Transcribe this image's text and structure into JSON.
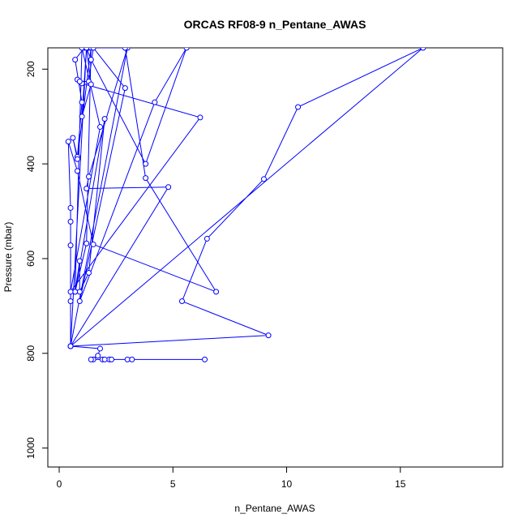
{
  "chart_data": {
    "type": "line",
    "title": "ORCAS RF08-9 n_Pentane_AWAS",
    "xlabel": "n_Pentane_AWAS",
    "ylabel": "Pressure (mbar)",
    "xlim": [
      -0.5,
      19.5
    ],
    "ylim": [
      1040,
      155
    ],
    "y_inverted": true,
    "x_ticks": [
      0,
      5,
      10,
      15
    ],
    "y_ticks": [
      200,
      400,
      600,
      800,
      1000
    ],
    "grid": false,
    "legend": "none",
    "series": [
      {
        "color": "#0000ff",
        "marker": "open-circle",
        "points": [
          [
            6.4,
            813
          ],
          [
            2.2,
            813
          ],
          [
            1.9,
            813
          ],
          [
            3.0,
            813
          ],
          [
            3.2,
            813
          ],
          [
            2.0,
            813
          ],
          [
            2.3,
            813
          ],
          [
            1.5,
            813
          ],
          [
            1.4,
            813
          ],
          [
            1.7,
            805
          ],
          [
            1.8,
            790
          ],
          [
            0.5,
            785
          ],
          [
            9.2,
            762
          ],
          [
            5.4,
            690
          ],
          [
            6.5,
            558
          ],
          [
            9.0,
            432
          ],
          [
            10.5,
            280
          ],
          [
            16.0,
            155
          ],
          [
            0.5,
            785
          ],
          [
            4.8,
            449
          ],
          [
            1.2,
            452
          ],
          [
            1.3,
            427
          ],
          [
            3.0,
            155
          ],
          [
            0.5,
            785
          ],
          [
            1.2,
            155
          ],
          [
            0.5,
            785
          ],
          [
            0.5,
            690
          ],
          [
            0.5,
            572
          ],
          [
            0.5,
            522
          ],
          [
            0.5,
            493
          ],
          [
            0.4,
            353
          ],
          [
            0.8,
            415
          ],
          [
            1.5,
            570
          ],
          [
            6.9,
            670
          ],
          [
            3.8,
            430
          ],
          [
            2.9,
            155
          ],
          [
            1.3,
            155
          ],
          [
            1.1,
            155
          ],
          [
            0.7,
            180
          ],
          [
            1.0,
            270
          ],
          [
            0.8,
            385
          ],
          [
            0.6,
            345
          ],
          [
            0.8,
            390
          ],
          [
            1.4,
            155
          ],
          [
            1.2,
            568
          ],
          [
            0.7,
            670
          ],
          [
            0.9,
            605
          ],
          [
            0.9,
            670
          ],
          [
            1.3,
            630
          ],
          [
            2.0,
            305
          ],
          [
            0.7,
            670
          ],
          [
            1.0,
            155
          ],
          [
            1.8,
            322
          ],
          [
            0.5,
            670
          ],
          [
            6.2,
            302
          ],
          [
            1.0,
            230
          ],
          [
            0.8,
            222
          ],
          [
            0.9,
            226
          ],
          [
            1.3,
            226
          ],
          [
            1.5,
            155
          ],
          [
            2.9,
            240
          ],
          [
            0.9,
            690
          ],
          [
            4.2,
            270
          ],
          [
            5.6,
            155
          ],
          [
            3.8,
            400
          ],
          [
            1.4,
            180
          ],
          [
            1.2,
            155
          ],
          [
            1.4,
            232
          ],
          [
            1.0,
            300
          ],
          [
            1.2,
            155
          ]
        ]
      }
    ]
  }
}
